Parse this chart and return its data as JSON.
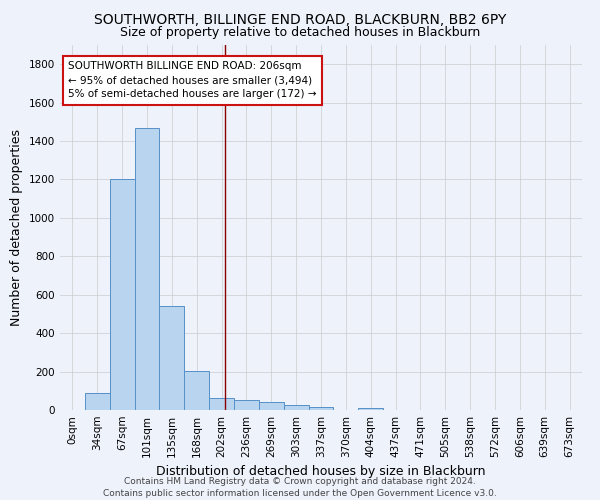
{
  "title": "SOUTHWORTH, BILLINGE END ROAD, BLACKBURN, BB2 6PY",
  "subtitle": "Size of property relative to detached houses in Blackburn",
  "xlabel": "Distribution of detached houses by size in Blackburn",
  "ylabel": "Number of detached properties",
  "footer_line1": "Contains HM Land Registry data © Crown copyright and database right 2024.",
  "footer_line2": "Contains public sector information licensed under the Open Government Licence v3.0.",
  "bar_labels": [
    "0sqm",
    "34sqm",
    "67sqm",
    "101sqm",
    "135sqm",
    "168sqm",
    "202sqm",
    "236sqm",
    "269sqm",
    "303sqm",
    "337sqm",
    "370sqm",
    "404sqm",
    "437sqm",
    "471sqm",
    "505sqm",
    "538sqm",
    "572sqm",
    "606sqm",
    "639sqm",
    "673sqm"
  ],
  "bar_values": [
    0,
    90,
    1200,
    1470,
    540,
    205,
    65,
    50,
    40,
    28,
    18,
    0,
    12,
    0,
    0,
    0,
    0,
    0,
    0,
    0,
    0
  ],
  "bar_color": "#b8d4ee",
  "bar_edge_color": "#5590c8",
  "property_line_color": "#8b0000",
  "annotation_text": "SOUTHWORTH BILLINGE END ROAD: 206sqm\n← 95% of detached houses are smaller (3,494)\n5% of semi-detached houses are larger (172) →",
  "ylim": [
    0,
    1900
  ],
  "yticks": [
    0,
    200,
    400,
    600,
    800,
    1000,
    1200,
    1400,
    1600,
    1800
  ],
  "background_color": "#eef2fb",
  "grid_color": "#cccccc",
  "title_fontsize": 10,
  "subtitle_fontsize": 9,
  "axis_label_fontsize": 9,
  "tick_fontsize": 7.5,
  "annotation_fontsize": 7.5,
  "footer_fontsize": 6.5
}
